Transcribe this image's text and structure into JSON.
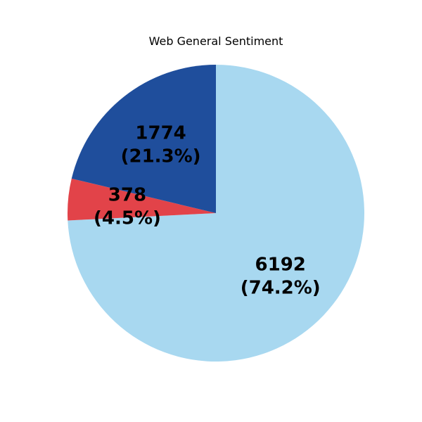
{
  "chart_data": {
    "type": "pie",
    "title": "Web General Sentiment",
    "slices": [
      {
        "value": 6192,
        "percent_label": "(74.2%)",
        "value_label": "6192",
        "color": "#a8d8f0"
      },
      {
        "value": 378,
        "percent_label": "(4.5%)",
        "value_label": "378",
        "color": "#e24349"
      },
      {
        "value": 1774,
        "percent_label": "(21.3%)",
        "value_label": "1774",
        "color": "#1f4e9c"
      }
    ],
    "start_angle_deg": 90,
    "direction": "clockwise",
    "legend": "none"
  }
}
